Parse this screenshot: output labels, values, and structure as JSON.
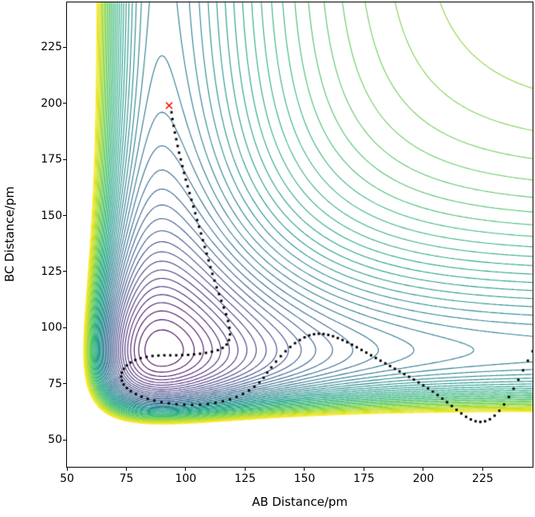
{
  "chart_data": {
    "type": "contour",
    "title": "",
    "xlabel": "AB Distance/pm",
    "ylabel": "BC Distance/pm",
    "x_range": [
      50,
      246
    ],
    "y_range": [
      38,
      245
    ],
    "x_ticks": [
      50,
      75,
      100,
      125,
      150,
      175,
      200,
      225
    ],
    "y_ticks": [
      50,
      75,
      100,
      125,
      150,
      175,
      200,
      225
    ],
    "grid": false,
    "legend": "none",
    "surface_model": {
      "type": "sum_of_morse",
      "formula": "V(x,y)=D*(1-exp(-a*(x-r0)))^2 + D*(1-exp(-a*(y-r0)))^2",
      "D": 1.0,
      "a": 0.028,
      "r0": 90
    },
    "contour_levels": {
      "min": 0.05,
      "step": 0.05,
      "count": 46
    },
    "colormap": {
      "name": "viridis",
      "anchors": [
        "#440154",
        "#482878",
        "#3e4a89",
        "#31688e",
        "#26828e",
        "#1f9e89",
        "#35b779",
        "#6dcd59",
        "#b5de2b",
        "#fde725"
      ]
    },
    "saddle_marker": {
      "symbol": "x",
      "color": "#ff0000",
      "x": 93,
      "y": 199
    },
    "trajectory": {
      "marker": "dot",
      "color": "#000000",
      "points": [
        [
          94,
          196
        ],
        [
          94.4,
          193
        ],
        [
          94.9,
          190
        ],
        [
          95.4,
          187
        ],
        [
          96,
          184
        ],
        [
          96.6,
          181
        ],
        [
          97.2,
          178
        ],
        [
          97.9,
          175
        ],
        [
          98.6,
          172
        ],
        [
          99.3,
          169
        ],
        [
          100,
          166
        ],
        [
          100.8,
          163
        ],
        [
          101.6,
          160
        ],
        [
          102.4,
          157
        ],
        [
          103.2,
          154
        ],
        [
          104,
          151
        ],
        [
          104.8,
          148
        ],
        [
          105.6,
          145
        ],
        [
          106.4,
          142
        ],
        [
          107.2,
          139
        ],
        [
          108,
          136
        ],
        [
          108.8,
          133
        ],
        [
          109.6,
          130
        ],
        [
          110.4,
          127
        ],
        [
          111.2,
          124
        ],
        [
          112.1,
          121
        ],
        [
          113,
          118
        ],
        [
          114,
          115
        ],
        [
          115,
          112
        ],
        [
          116,
          109
        ],
        [
          117,
          106
        ],
        [
          117.8,
          103
        ],
        [
          118.4,
          100
        ],
        [
          118.6,
          97
        ],
        [
          118.2,
          94.5
        ],
        [
          117.2,
          92.5
        ],
        [
          115.5,
          91
        ],
        [
          113.5,
          90
        ],
        [
          111,
          89.3
        ],
        [
          108.5,
          88.8
        ],
        [
          106,
          88.4
        ],
        [
          103.5,
          88.1
        ],
        [
          101,
          87.9
        ],
        [
          98.5,
          87.8
        ],
        [
          96,
          87.7
        ],
        [
          93.5,
          87.7
        ],
        [
          91,
          87.7
        ],
        [
          88.5,
          87.6
        ],
        [
          86,
          87.4
        ],
        [
          83.5,
          87
        ],
        [
          81,
          86.4
        ],
        [
          78.8,
          85.6
        ],
        [
          76.8,
          84.5
        ],
        [
          75.2,
          83.2
        ],
        [
          73.9,
          81.7
        ],
        [
          73.1,
          80
        ],
        [
          72.8,
          78.2
        ],
        [
          73.1,
          76.4
        ],
        [
          73.9,
          74.7
        ],
        [
          75.2,
          73.1
        ],
        [
          76.9,
          71.7
        ],
        [
          79,
          70.4
        ],
        [
          81.4,
          69.3
        ],
        [
          84,
          68.3
        ],
        [
          86.8,
          67.5
        ],
        [
          89.8,
          66.8
        ],
        [
          92.9,
          66.3
        ],
        [
          96.1,
          65.9
        ],
        [
          99.4,
          65.7
        ],
        [
          102.7,
          65.6
        ],
        [
          106,
          65.7
        ],
        [
          109.3,
          66
        ],
        [
          112.5,
          66.5
        ],
        [
          115.6,
          67.2
        ],
        [
          118.6,
          68.1
        ],
        [
          121.4,
          69.2
        ],
        [
          124.1,
          70.5
        ],
        [
          126.6,
          72
        ],
        [
          128.9,
          73.7
        ],
        [
          131,
          75.6
        ],
        [
          132.8,
          77.7
        ],
        [
          134.3,
          80
        ],
        [
          136,
          82.3
        ],
        [
          138,
          84.9
        ],
        [
          140,
          87.3
        ],
        [
          142,
          89.5
        ],
        [
          144,
          91.4
        ],
        [
          146,
          93.1
        ],
        [
          148,
          94.5
        ],
        [
          150,
          95.7
        ],
        [
          152,
          96.6
        ],
        [
          154,
          97.1
        ],
        [
          156,
          97.3
        ],
        [
          158,
          97.2
        ],
        [
          160,
          96.8
        ],
        [
          162,
          96.2
        ],
        [
          164,
          95.4
        ],
        [
          166,
          94.5
        ],
        [
          168,
          93.5
        ],
        [
          170,
          92.4
        ],
        [
          172,
          91.3
        ],
        [
          174,
          90.1
        ],
        [
          176,
          88.9
        ],
        [
          178,
          87.7
        ],
        [
          180,
          86.5
        ],
        [
          182,
          85.3
        ],
        [
          184,
          84.1
        ],
        [
          186,
          82.9
        ],
        [
          188,
          81.7
        ],
        [
          190,
          80.5
        ],
        [
          192,
          79.3
        ],
        [
          194,
          78.1
        ],
        [
          196,
          76.9
        ],
        [
          198,
          75.6
        ],
        [
          200,
          74.3
        ],
        [
          202,
          72.9
        ],
        [
          204,
          71.5
        ],
        [
          206,
          70
        ],
        [
          208,
          68.4
        ],
        [
          210,
          66.8
        ],
        [
          212,
          65.1
        ],
        [
          214,
          63.4
        ],
        [
          216,
          61.8
        ],
        [
          218,
          60.3
        ],
        [
          220,
          59.1
        ],
        [
          222,
          58.3
        ],
        [
          224,
          58
        ],
        [
          226,
          58.3
        ],
        [
          228,
          59.2
        ],
        [
          230,
          60.8
        ],
        [
          232,
          63
        ],
        [
          234,
          65.8
        ],
        [
          236,
          69.1
        ],
        [
          238,
          72.8
        ],
        [
          240,
          76.8
        ],
        [
          242,
          81
        ],
        [
          244,
          85.3
        ],
        [
          246,
          89.5
        ]
      ]
    }
  }
}
